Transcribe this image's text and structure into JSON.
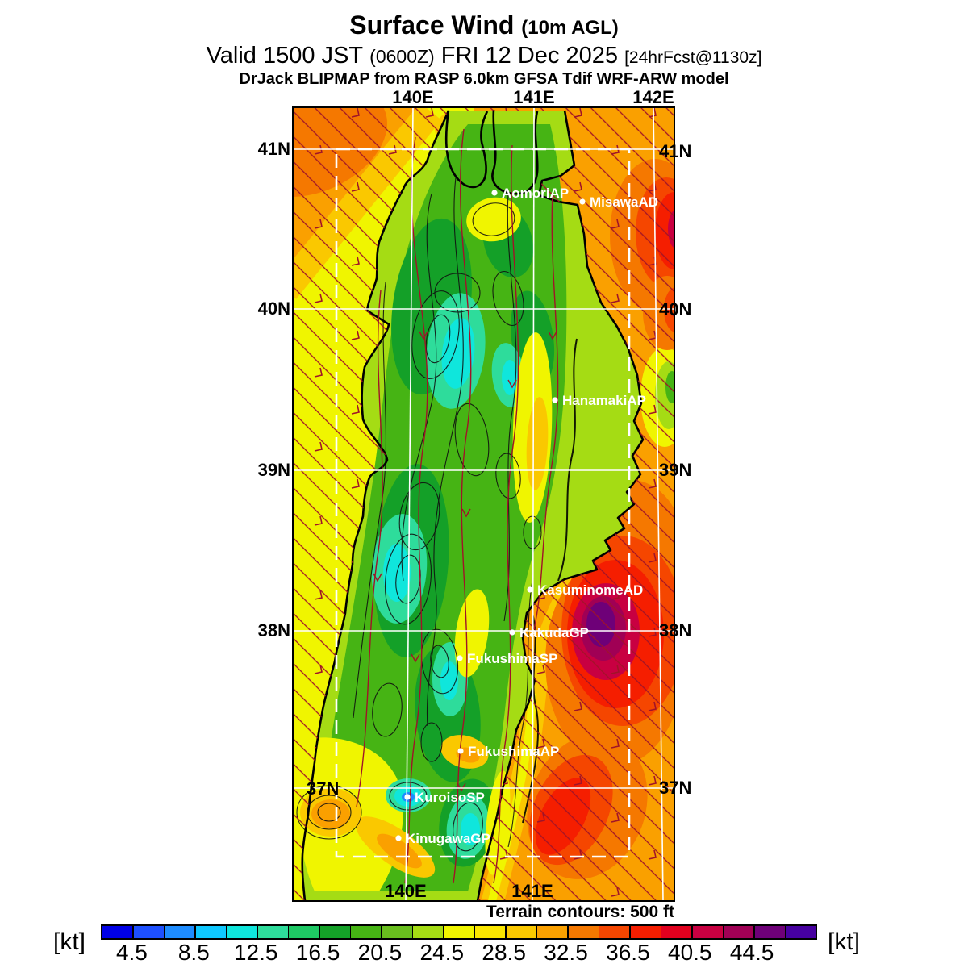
{
  "title": {
    "main": "Surface Wind",
    "suffix": "(10m AGL)",
    "valid": "Valid 1500 JST",
    "zulu": "(0600Z)",
    "date": "FRI 12 Dec 2025",
    "fcst": "[24hrFcst@1130z]",
    "model": "DrJack BLIPMAP from RASP 6.0km GFSA Tdif WRF-ARW model"
  },
  "map": {
    "lon_top": [
      "140E",
      "141E",
      "142E"
    ],
    "lon_bottom": [
      "140E",
      "141E"
    ],
    "lat_left": [
      "41N",
      "40N",
      "39N",
      "38N"
    ],
    "lat_inside": "37N",
    "lat_right": [
      "41N",
      "40N",
      "39N",
      "38N",
      "37N"
    ],
    "stations": [
      {
        "name": "AomoriAP"
      },
      {
        "name": "MisawaAD"
      },
      {
        "name": "HanamakiAP"
      },
      {
        "name": "KasuminomeAD"
      },
      {
        "name": "KakudaGP"
      },
      {
        "name": "FukushimaSP"
      },
      {
        "name": "FukushimaAP"
      },
      {
        "name": "KuroisoSP"
      },
      {
        "name": "KinugawaGP"
      }
    ],
    "note": "Terrain contours: 500 ft"
  },
  "colorbar": {
    "unit": "[kt]",
    "tick_labels": [
      "4.5",
      "8.5",
      "12.5",
      "16.5",
      "20.5",
      "24.5",
      "28.5",
      "32.5",
      "36.5",
      "40.5",
      "44.5"
    ],
    "segment_colors": [
      "#0000E6",
      "#1E50FF",
      "#1E8CFF",
      "#0FC8FF",
      "#0FE6DC",
      "#2EDC9B",
      "#1EC864",
      "#14A028",
      "#46B414",
      "#69BE1E",
      "#A5DC14",
      "#F0F500",
      "#FAE600",
      "#FAC800",
      "#FAA000",
      "#F57800",
      "#F54600",
      "#F51E00",
      "#E1001E",
      "#C80041",
      "#A00055",
      "#6E0078",
      "#4600A0"
    ]
  },
  "colors": {
    "streamline": "#A01428",
    "sea_low_wind": "#F0F500",
    "sea_high_wind": "#FAA000",
    "storm_core": "#6E0078",
    "land": "#46B414"
  }
}
